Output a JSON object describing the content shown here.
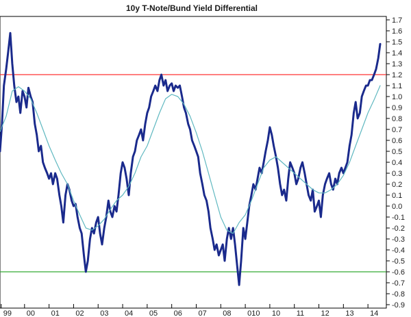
{
  "chart_data": {
    "type": "line",
    "title": "10y T-Note/Bund Yield Differential",
    "xlabel": "",
    "ylabel": "",
    "ylim": [
      -0.9,
      1.7
    ],
    "xlim": [
      1999.0,
      2014.75
    ],
    "x_ticks": [
      {
        "label": "99",
        "x": 1999.05
      },
      {
        "label": "00",
        "x": 2000.0
      },
      {
        "label": "01",
        "x": 2001.0
      },
      {
        "label": "02",
        "x": 2002.0
      },
      {
        "label": "03",
        "x": 2003.0
      },
      {
        "label": "04",
        "x": 2004.0
      },
      {
        "label": "05",
        "x": 2005.0
      },
      {
        "label": "06",
        "x": 2006.0
      },
      {
        "label": "07",
        "x": 2007.0
      },
      {
        "label": "08",
        "x": 2008.0
      },
      {
        "label": "010",
        "x": 2009.0
      },
      {
        "label": "10",
        "x": 2010.0
      },
      {
        "label": "11",
        "x": 2011.0
      },
      {
        "label": "12",
        "x": 2012.0
      },
      {
        "label": "13",
        "x": 2013.0
      },
      {
        "label": "14",
        "x": 2014.0
      }
    ],
    "y_ticks": [
      1.7,
      1.6,
      1.5,
      1.4,
      1.3,
      1.2,
      1.1,
      1.0,
      0.9,
      0.8,
      0.7,
      0.6,
      0.5,
      0.4,
      0.3,
      0.2,
      0.1,
      0.0,
      -0.1,
      -0.2,
      -0.3,
      -0.4,
      -0.5,
      -0.6,
      -0.7,
      -0.8,
      -0.9
    ],
    "y_tick_labels": [
      "1.7",
      "1.6",
      "1.5",
      "1.4",
      "1.3",
      "1.2",
      "1.1",
      "1.0",
      "0.9",
      "0.8",
      "0.7",
      "0.6",
      "0.5",
      "0.4",
      "0.3",
      "0.2",
      "0.1",
      "0.0",
      "-0.1",
      "-0.2",
      "-0.3",
      "-0.4",
      "-0.5",
      "-0.6",
      "-0.7",
      "-0.8",
      "-0.9"
    ],
    "reference_lines": [
      {
        "y": 1.2,
        "color": "#ff3333"
      },
      {
        "y": -0.6,
        "color": "#33aa33"
      }
    ],
    "series": [
      {
        "color": "#1a2a8c",
        "points": [
          [
            1999.0,
            0.5
          ],
          [
            1999.08,
            0.75
          ],
          [
            1999.16,
            1.1
          ],
          [
            1999.25,
            1.25
          ],
          [
            1999.33,
            1.4
          ],
          [
            1999.42,
            1.58
          ],
          [
            1999.5,
            1.3
          ],
          [
            1999.58,
            1.1
          ],
          [
            1999.67,
            0.95
          ],
          [
            1999.75,
            1.0
          ],
          [
            1999.83,
            0.85
          ],
          [
            1999.92,
            1.05
          ],
          [
            2000.0,
            1.0
          ],
          [
            2000.08,
            0.9
          ],
          [
            2000.16,
            1.08
          ],
          [
            2000.25,
            1.0
          ],
          [
            2000.33,
            0.95
          ],
          [
            2000.42,
            0.75
          ],
          [
            2000.5,
            0.65
          ],
          [
            2000.58,
            0.5
          ],
          [
            2000.67,
            0.55
          ],
          [
            2000.75,
            0.4
          ],
          [
            2000.83,
            0.35
          ],
          [
            2000.92,
            0.3
          ],
          [
            2001.0,
            0.25
          ],
          [
            2001.08,
            0.3
          ],
          [
            2001.16,
            0.2
          ],
          [
            2001.25,
            0.3
          ],
          [
            2001.33,
            0.25
          ],
          [
            2001.42,
            0.1
          ],
          [
            2001.5,
            0.0
          ],
          [
            2001.58,
            -0.15
          ],
          [
            2001.67,
            0.1
          ],
          [
            2001.75,
            0.2
          ],
          [
            2001.83,
            0.15
          ],
          [
            2001.92,
            0.05
          ],
          [
            2002.0,
            0.0
          ],
          [
            2002.08,
            0.02
          ],
          [
            2002.16,
            -0.1
          ],
          [
            2002.25,
            -0.2
          ],
          [
            2002.33,
            -0.25
          ],
          [
            2002.42,
            -0.45
          ],
          [
            2002.5,
            -0.6
          ],
          [
            2002.58,
            -0.5
          ],
          [
            2002.67,
            -0.3
          ],
          [
            2002.75,
            -0.2
          ],
          [
            2002.83,
            -0.25
          ],
          [
            2002.92,
            -0.15
          ],
          [
            2003.0,
            -0.1
          ],
          [
            2003.08,
            -0.25
          ],
          [
            2003.16,
            -0.35
          ],
          [
            2003.25,
            -0.2
          ],
          [
            2003.33,
            -0.1
          ],
          [
            2003.42,
            0.05
          ],
          [
            2003.5,
            -0.05
          ],
          [
            2003.58,
            -0.1
          ],
          [
            2003.67,
            0.0
          ],
          [
            2003.75,
            -0.05
          ],
          [
            2003.83,
            0.1
          ],
          [
            2003.92,
            0.3
          ],
          [
            2004.0,
            0.4
          ],
          [
            2004.08,
            0.35
          ],
          [
            2004.16,
            0.25
          ],
          [
            2004.25,
            0.1
          ],
          [
            2004.33,
            0.3
          ],
          [
            2004.42,
            0.45
          ],
          [
            2004.5,
            0.5
          ],
          [
            2004.58,
            0.6
          ],
          [
            2004.67,
            0.65
          ],
          [
            2004.75,
            0.7
          ],
          [
            2004.83,
            0.6
          ],
          [
            2004.92,
            0.75
          ],
          [
            2005.0,
            0.85
          ],
          [
            2005.08,
            0.9
          ],
          [
            2005.16,
            1.0
          ],
          [
            2005.25,
            1.05
          ],
          [
            2005.33,
            1.1
          ],
          [
            2005.42,
            1.05
          ],
          [
            2005.5,
            1.15
          ],
          [
            2005.58,
            1.2
          ],
          [
            2005.67,
            1.1
          ],
          [
            2005.75,
            1.15
          ],
          [
            2005.83,
            1.05
          ],
          [
            2005.92,
            1.1
          ],
          [
            2006.0,
            1.12
          ],
          [
            2006.08,
            1.05
          ],
          [
            2006.16,
            1.1
          ],
          [
            2006.25,
            1.08
          ],
          [
            2006.33,
            1.1
          ],
          [
            2006.42,
            1.0
          ],
          [
            2006.5,
            0.9
          ],
          [
            2006.58,
            0.85
          ],
          [
            2006.67,
            0.75
          ],
          [
            2006.75,
            0.7
          ],
          [
            2006.83,
            0.6
          ],
          [
            2006.92,
            0.55
          ],
          [
            2007.0,
            0.5
          ],
          [
            2007.08,
            0.45
          ],
          [
            2007.16,
            0.3
          ],
          [
            2007.25,
            0.2
          ],
          [
            2007.33,
            0.1
          ],
          [
            2007.42,
            0.05
          ],
          [
            2007.5,
            -0.05
          ],
          [
            2007.58,
            -0.2
          ],
          [
            2007.67,
            -0.3
          ],
          [
            2007.75,
            -0.4
          ],
          [
            2007.83,
            -0.35
          ],
          [
            2007.92,
            -0.45
          ],
          [
            2008.0,
            -0.4
          ],
          [
            2008.08,
            -0.35
          ],
          [
            2008.16,
            -0.5
          ],
          [
            2008.25,
            -0.3
          ],
          [
            2008.33,
            -0.2
          ],
          [
            2008.42,
            -0.3
          ],
          [
            2008.5,
            -0.2
          ],
          [
            2008.58,
            -0.35
          ],
          [
            2008.67,
            -0.55
          ],
          [
            2008.75,
            -0.72
          ],
          [
            2008.83,
            -0.5
          ],
          [
            2008.92,
            -0.2
          ],
          [
            2009.0,
            -0.3
          ],
          [
            2009.08,
            -0.15
          ],
          [
            2009.16,
            0.0
          ],
          [
            2009.25,
            0.1
          ],
          [
            2009.33,
            0.2
          ],
          [
            2009.42,
            0.15
          ],
          [
            2009.5,
            0.25
          ],
          [
            2009.58,
            0.35
          ],
          [
            2009.67,
            0.3
          ],
          [
            2009.75,
            0.4
          ],
          [
            2009.83,
            0.5
          ],
          [
            2009.92,
            0.6
          ],
          [
            2010.0,
            0.72
          ],
          [
            2010.08,
            0.65
          ],
          [
            2010.16,
            0.55
          ],
          [
            2010.25,
            0.45
          ],
          [
            2010.33,
            0.35
          ],
          [
            2010.42,
            0.2
          ],
          [
            2010.5,
            0.1
          ],
          [
            2010.58,
            0.15
          ],
          [
            2010.67,
            0.05
          ],
          [
            2010.75,
            0.25
          ],
          [
            2010.83,
            0.4
          ],
          [
            2010.92,
            0.35
          ],
          [
            2011.0,
            0.3
          ],
          [
            2011.08,
            0.2
          ],
          [
            2011.16,
            0.25
          ],
          [
            2011.25,
            0.35
          ],
          [
            2011.33,
            0.4
          ],
          [
            2011.42,
            0.3
          ],
          [
            2011.5,
            0.2
          ],
          [
            2011.58,
            0.1
          ],
          [
            2011.67,
            0.05
          ],
          [
            2011.75,
            0.15
          ],
          [
            2011.83,
            -0.05
          ],
          [
            2011.92,
            0.0
          ],
          [
            2012.0,
            0.05
          ],
          [
            2012.08,
            -0.1
          ],
          [
            2012.16,
            0.1
          ],
          [
            2012.25,
            0.2
          ],
          [
            2012.33,
            0.25
          ],
          [
            2012.42,
            0.3
          ],
          [
            2012.5,
            0.2
          ],
          [
            2012.58,
            0.15
          ],
          [
            2012.67,
            0.25
          ],
          [
            2012.75,
            0.2
          ],
          [
            2012.83,
            0.3
          ],
          [
            2012.92,
            0.35
          ],
          [
            2013.0,
            0.3
          ],
          [
            2013.08,
            0.35
          ],
          [
            2013.16,
            0.4
          ],
          [
            2013.25,
            0.55
          ],
          [
            2013.33,
            0.65
          ],
          [
            2013.42,
            0.85
          ],
          [
            2013.5,
            0.95
          ],
          [
            2013.58,
            0.8
          ],
          [
            2013.67,
            0.85
          ],
          [
            2013.75,
            1.0
          ],
          [
            2013.83,
            1.05
          ],
          [
            2013.92,
            1.1
          ],
          [
            2014.0,
            1.1
          ],
          [
            2014.08,
            1.15
          ],
          [
            2014.16,
            1.15
          ],
          [
            2014.25,
            1.2
          ],
          [
            2014.33,
            1.25
          ],
          [
            2014.42,
            1.35
          ],
          [
            2014.5,
            1.48
          ]
        ]
      },
      {
        "color": "#5fb8c0",
        "points": [
          [
            1999.0,
            0.68
          ],
          [
            1999.25,
            0.82
          ],
          [
            1999.5,
            1.05
          ],
          [
            1999.75,
            1.09
          ],
          [
            2000.0,
            1.05
          ],
          [
            2000.25,
            0.98
          ],
          [
            2000.5,
            0.85
          ],
          [
            2000.75,
            0.7
          ],
          [
            2001.0,
            0.55
          ],
          [
            2001.25,
            0.42
          ],
          [
            2001.5,
            0.3
          ],
          [
            2001.75,
            0.2
          ],
          [
            2002.0,
            0.05
          ],
          [
            2002.25,
            -0.08
          ],
          [
            2002.5,
            -0.2
          ],
          [
            2002.75,
            -0.22
          ],
          [
            2003.0,
            -0.18
          ],
          [
            2003.25,
            -0.12
          ],
          [
            2003.5,
            -0.03
          ],
          [
            2003.75,
            0.05
          ],
          [
            2004.0,
            0.1
          ],
          [
            2004.25,
            0.18
          ],
          [
            2004.5,
            0.3
          ],
          [
            2004.75,
            0.45
          ],
          [
            2005.0,
            0.55
          ],
          [
            2005.25,
            0.7
          ],
          [
            2005.5,
            0.85
          ],
          [
            2005.75,
            0.98
          ],
          [
            2006.0,
            1.02
          ],
          [
            2006.25,
            1.0
          ],
          [
            2006.5,
            0.93
          ],
          [
            2006.75,
            0.82
          ],
          [
            2007.0,
            0.67
          ],
          [
            2007.25,
            0.5
          ],
          [
            2007.5,
            0.3
          ],
          [
            2007.75,
            0.1
          ],
          [
            2008.0,
            -0.1
          ],
          [
            2008.25,
            -0.22
          ],
          [
            2008.5,
            -0.25
          ],
          [
            2008.75,
            -0.15
          ],
          [
            2009.0,
            -0.08
          ],
          [
            2009.25,
            0.05
          ],
          [
            2009.5,
            0.2
          ],
          [
            2009.75,
            0.35
          ],
          [
            2010.0,
            0.42
          ],
          [
            2010.25,
            0.45
          ],
          [
            2010.5,
            0.4
          ],
          [
            2010.75,
            0.35
          ],
          [
            2011.0,
            0.3
          ],
          [
            2011.25,
            0.25
          ],
          [
            2011.5,
            0.2
          ],
          [
            2011.75,
            0.15
          ],
          [
            2012.0,
            0.12
          ],
          [
            2012.25,
            0.12
          ],
          [
            2012.5,
            0.15
          ],
          [
            2012.75,
            0.2
          ],
          [
            2013.0,
            0.28
          ],
          [
            2013.25,
            0.4
          ],
          [
            2013.5,
            0.55
          ],
          [
            2013.75,
            0.7
          ],
          [
            2014.0,
            0.85
          ],
          [
            2014.25,
            0.97
          ],
          [
            2014.5,
            1.1
          ]
        ]
      }
    ]
  }
}
